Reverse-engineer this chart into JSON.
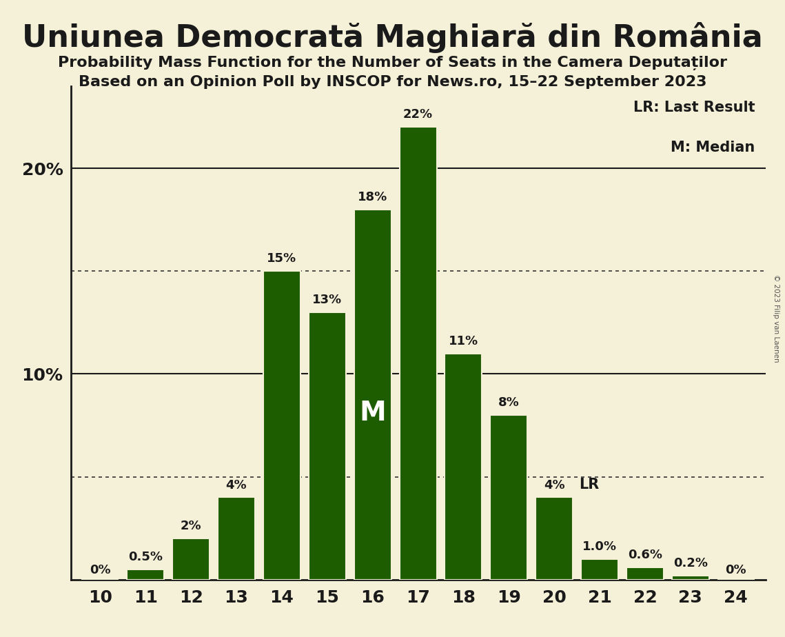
{
  "title": "Uniunea Democrată Maghiară din România",
  "subtitle1": "Probability Mass Function for the Number of Seats in the Camera Deputaților",
  "subtitle2": "Based on an Opinion Poll by INSCOP for News.ro, 15–22 September 2023",
  "copyright": "© 2023 Filip van Laenen",
  "seats": [
    10,
    11,
    12,
    13,
    14,
    15,
    16,
    17,
    18,
    19,
    20,
    21,
    22,
    23,
    24
  ],
  "probs": [
    0.0,
    0.5,
    2.0,
    4.0,
    15.0,
    13.0,
    18.0,
    22.0,
    11.0,
    8.0,
    4.0,
    1.0,
    0.6,
    0.2,
    0.0
  ],
  "bar_color": "#1e5c00",
  "background_color": "#f5f0d8",
  "text_color": "#1a1a1a",
  "label_color_inside": "#ffffff",
  "label_color_outside": "#1a1a1a",
  "median_seat": 16,
  "lr_seat": 20,
  "lr_label": "LR",
  "median_label": "M",
  "legend_lr": "LR: Last Result",
  "legend_m": "M: Median",
  "dotted_lines": [
    5.0,
    15.0
  ],
  "solid_lines": [
    10.0,
    20.0
  ],
  "ylim_max": 24.0,
  "yticks": [
    10,
    20
  ],
  "ytick_labels": [
    "10%",
    "20%"
  ],
  "bar_labels": [
    "0%",
    "0.5%",
    "2%",
    "4%",
    "15%",
    "13%",
    "18%",
    "22%",
    "11%",
    "8%",
    "4%",
    "1.0%",
    "0.6%",
    "0.2%",
    "0%"
  ],
  "inside_label_threshold": 999,
  "title_fontsize": 32,
  "subtitle_fontsize": 16,
  "tick_fontsize": 18,
  "bar_label_fontsize": 13,
  "legend_fontsize": 15,
  "median_label_fontsize": 28
}
